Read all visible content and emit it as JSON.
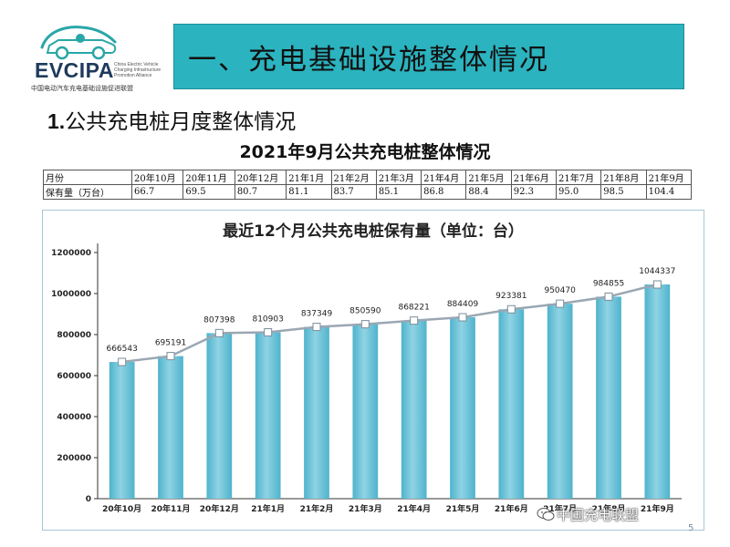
{
  "logo": {
    "name": "EVCIPA",
    "tagline": "China Electric Vehicle Charging Infrastructure Promotion Alliance",
    "cn_name": "中国电动汽车充电基础设施促进联盟"
  },
  "header": {
    "title": "一、充电基础设施整体情况"
  },
  "subheading": {
    "number": "1.",
    "text": "公共充电桩月度整体情况"
  },
  "table": {
    "title": "2021年9月公共充电桩整体情况",
    "row_labels": [
      "月份",
      "保有量（万台）"
    ],
    "months": [
      "20年10月",
      "20年11月",
      "20年12月",
      "21年1月",
      "21年2月",
      "21年3月",
      "21年4月",
      "21年5月",
      "21年6月",
      "21年7月",
      "21年8月",
      "21年9月"
    ],
    "values": [
      "66.7",
      "69.5",
      "80.7",
      "81.1",
      "83.7",
      "85.1",
      "86.8",
      "88.4",
      "92.3",
      "95.0",
      "98.5",
      "104.4"
    ]
  },
  "chart_data": {
    "type": "bar",
    "title": "最近12个月公共充电桩保有量（单位：台）",
    "categories": [
      "20年10月",
      "20年11月",
      "20年12月",
      "21年1月",
      "21年2月",
      "21年3月",
      "21年4月",
      "21年5月",
      "21年6月",
      "21年7月",
      "21年8月",
      "21年9月"
    ],
    "values": [
      666543,
      695191,
      807398,
      810903,
      837349,
      850590,
      868221,
      884409,
      923381,
      950470,
      984855,
      1044337
    ],
    "overlay_line": true,
    "ylim": [
      0,
      1200000
    ],
    "yticks": [
      0,
      200000,
      400000,
      600000,
      800000,
      1000000,
      1200000
    ],
    "grid": false,
    "colors": {
      "bar": "#8fd3e4",
      "bar_dark": "#4fb3cc",
      "line": "#9aa7b3",
      "marker": "#ffffff"
    }
  },
  "watermark": {
    "text": "中国充电联盟",
    "icon": "wechat-icon"
  },
  "page_number": "5",
  "colors": {
    "header_bar": "#2bb3bf",
    "logo_accent": "#2aa6a8",
    "frame": "#a9c6d6"
  }
}
